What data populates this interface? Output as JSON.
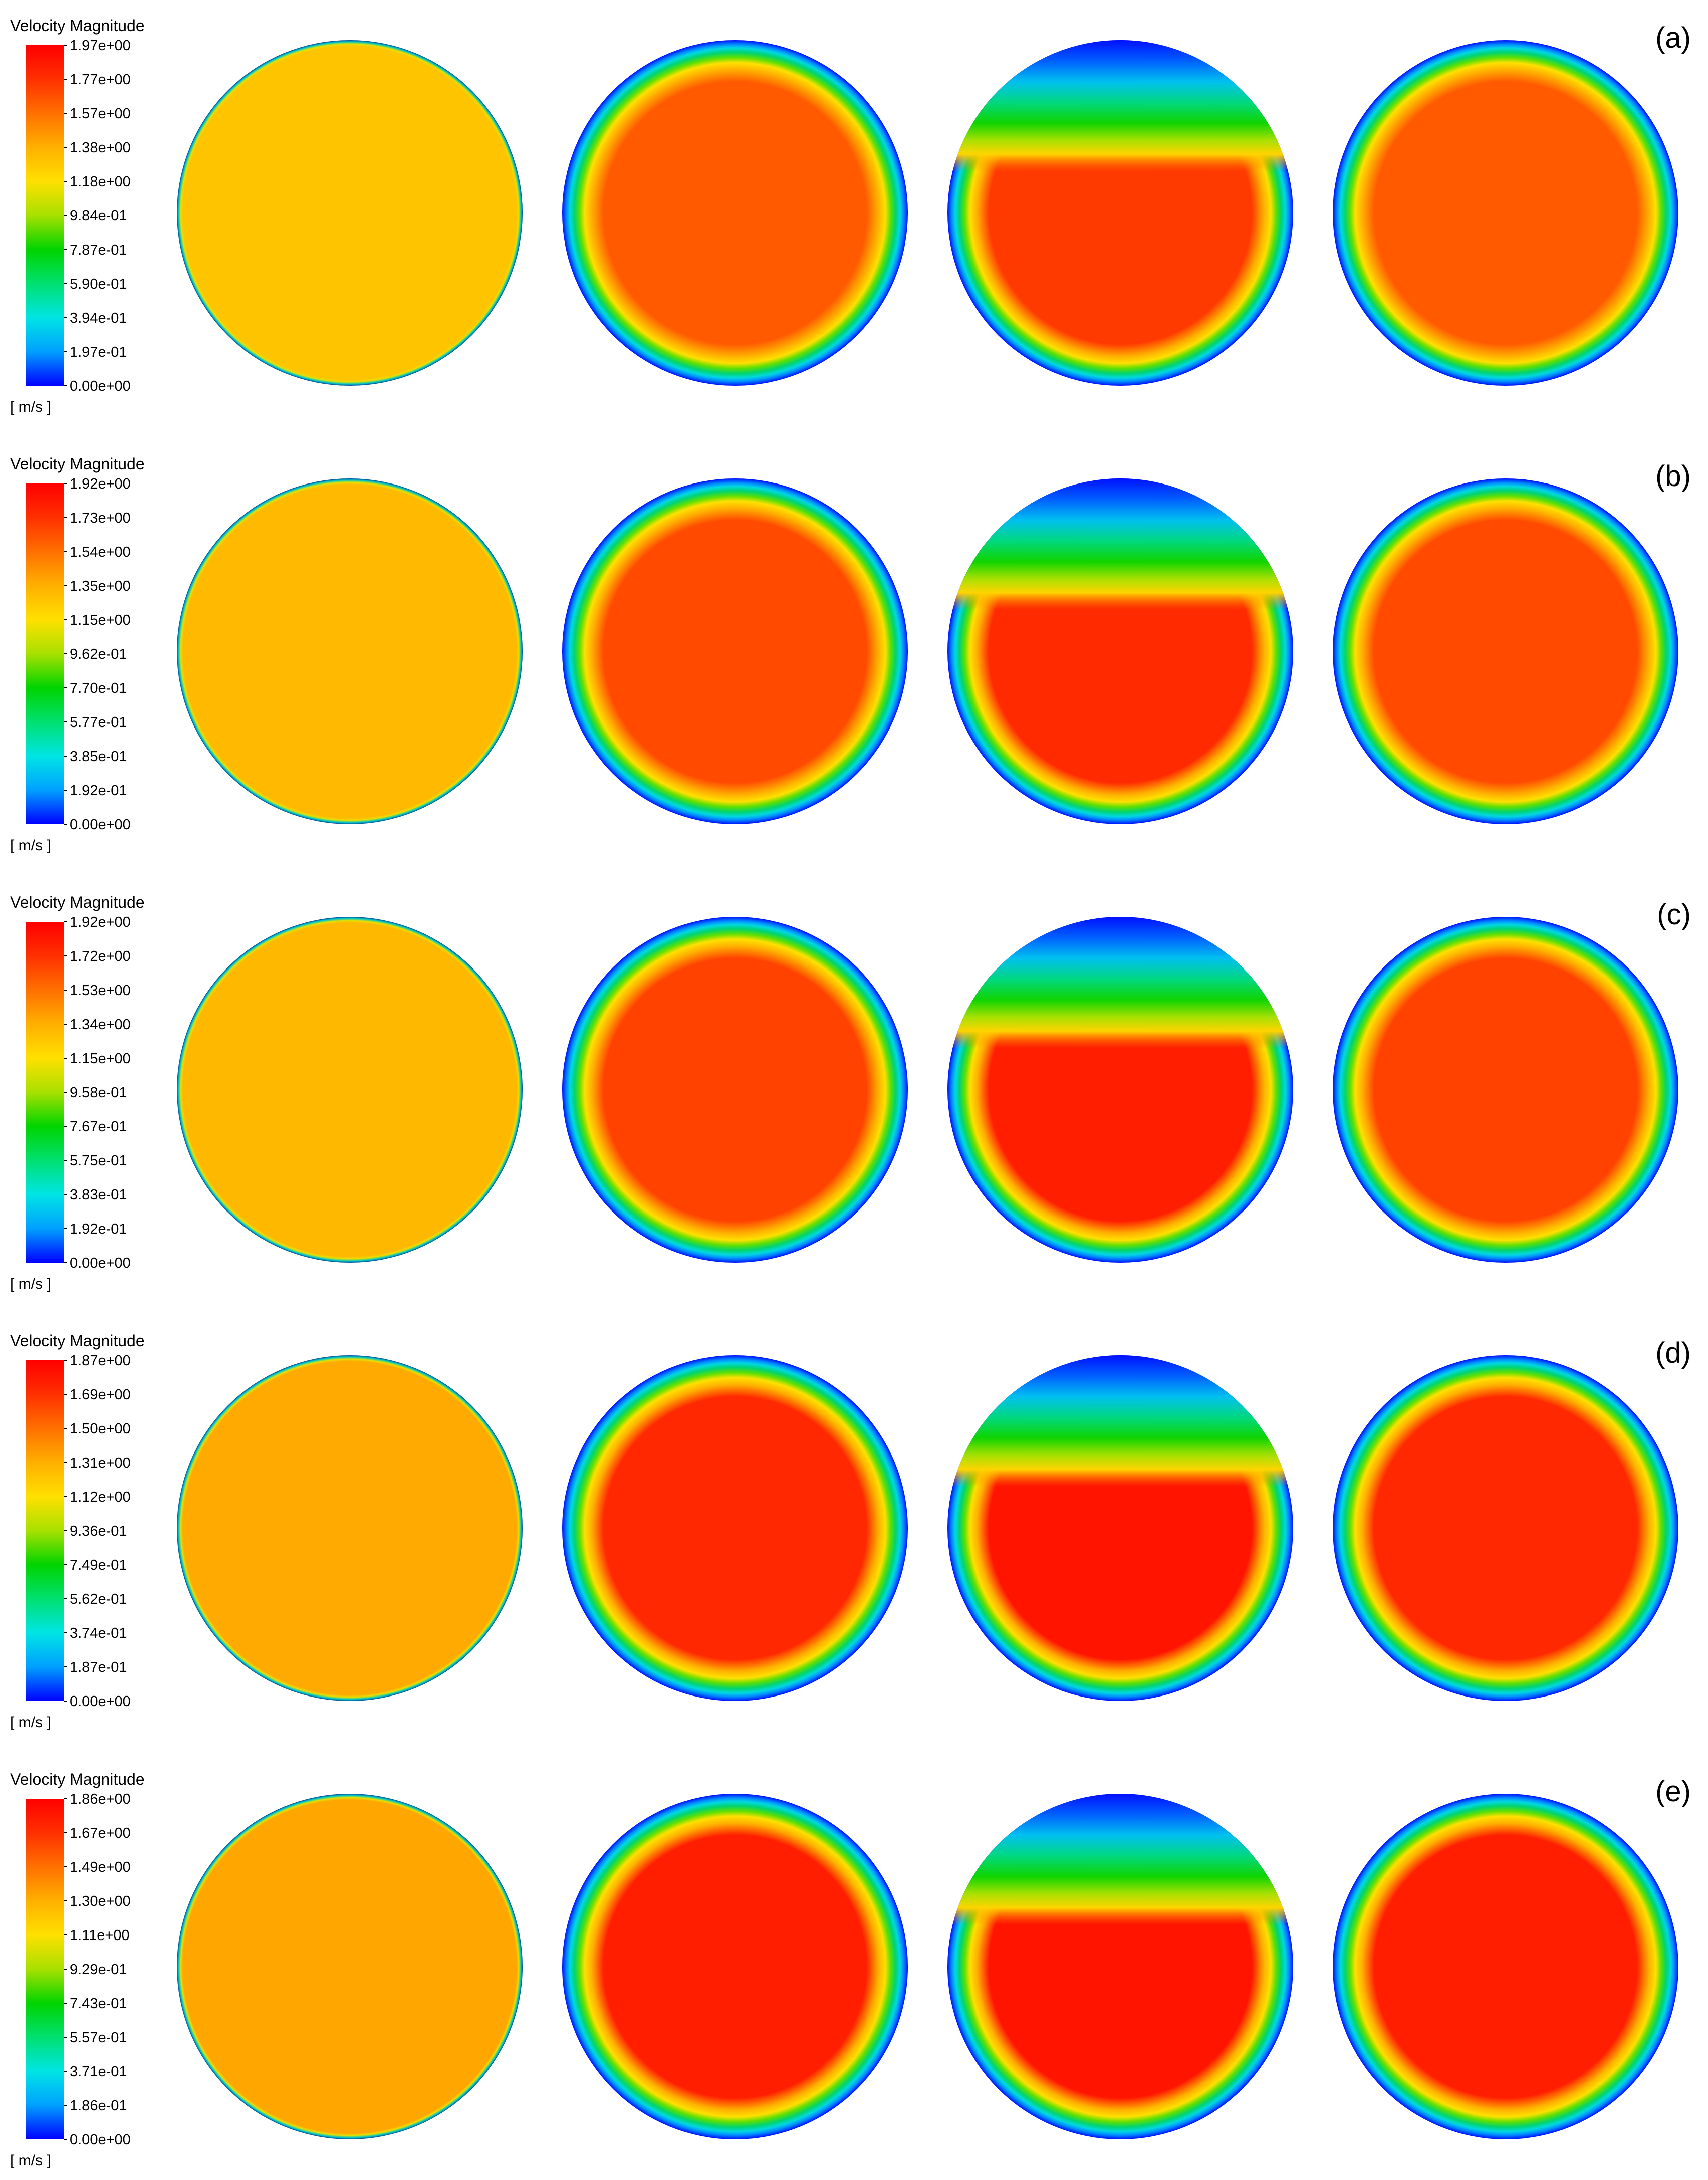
{
  "colormap": [
    "#0000ff",
    "#00a0ff",
    "#00e5e5",
    "#00e070",
    "#00d400",
    "#a8e000",
    "#ffe000",
    "#ffb000",
    "#ff7000",
    "#ff3000",
    "#ff0000"
  ],
  "rows": [
    {
      "label": "(a)",
      "legend_title": "Velocity Magnitude",
      "legend_unit": "[ m/s ]",
      "ticks": [
        "1.97e+00",
        "1.77e+00",
        "1.57e+00",
        "1.38e+00",
        "1.18e+00",
        "9.84e-01",
        "7.87e-01",
        "5.90e-01",
        "3.94e-01",
        "1.97e-01",
        "0.00e+00"
      ],
      "disc_colors": {
        "core1": "#ffc400",
        "core": "#ff5a00",
        "core3": "#ff3a00",
        "core4": "#ff5a00"
      }
    },
    {
      "label": "(b)",
      "legend_title": "Velocity Magnitude",
      "legend_unit": "[ m/s ]",
      "ticks": [
        "1.92e+00",
        "1.73e+00",
        "1.54e+00",
        "1.35e+00",
        "1.15e+00",
        "9.62e-01",
        "7.70e-01",
        "5.77e-01",
        "3.85e-01",
        "1.92e-01",
        "0.00e+00"
      ],
      "disc_colors": {
        "core1": "#ffba00",
        "core": "#ff4a00",
        "core3": "#ff2a00",
        "core4": "#ff4a00"
      }
    },
    {
      "label": "(c)",
      "legend_title": "Velocity Magnitude",
      "legend_unit": "[ m/s ]",
      "ticks": [
        "1.92e+00",
        "1.72e+00",
        "1.53e+00",
        "1.34e+00",
        "1.15e+00",
        "9.58e-01",
        "7.67e-01",
        "5.75e-01",
        "3.83e-01",
        "1.92e-01",
        "0.00e+00"
      ],
      "disc_colors": {
        "core1": "#ffb800",
        "core": "#ff4200",
        "core3": "#ff1e00",
        "core4": "#ff4200"
      }
    },
    {
      "label": "(d)",
      "legend_title": "Velocity Magnitude",
      "legend_unit": "[ m/s ]",
      "ticks": [
        "1.87e+00",
        "1.69e+00",
        "1.50e+00",
        "1.31e+00",
        "1.12e+00",
        "9.36e-01",
        "7.49e-01",
        "5.62e-01",
        "3.74e-01",
        "1.87e-01",
        "0.00e+00"
      ],
      "disc_colors": {
        "core1": "#ffaa00",
        "core": "#ff2800",
        "core3": "#ff1400",
        "core4": "#ff2800"
      }
    },
    {
      "label": "(e)",
      "legend_title": "Velocity Magnitude",
      "legend_unit": "[ m/s ]",
      "ticks": [
        "1.86e+00",
        "1.67e+00",
        "1.49e+00",
        "1.30e+00",
        "1.11e+00",
        "9.29e-01",
        "7.43e-01",
        "5.57e-01",
        "3.71e-01",
        "1.86e-01",
        "0.00e+00"
      ],
      "disc_colors": {
        "core1": "#ffa600",
        "core": "#ff1e00",
        "core3": "#ff1400",
        "core4": "#ff1e00"
      }
    }
  ]
}
